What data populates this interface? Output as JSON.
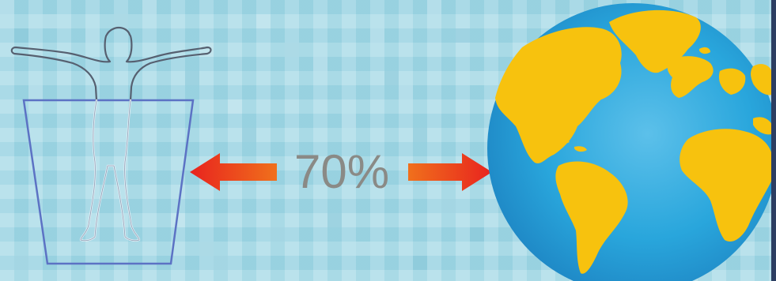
{
  "label": {
    "percent": "70%"
  },
  "colors": {
    "background": "#a9dbe8",
    "percent_text": "#8a8a86",
    "arrow_start": "#f0701c",
    "arrow_end": "#e8231e",
    "container_stroke": "#5c72c4",
    "body_outline": "#566070",
    "ocean": "#29a6dc",
    "land": "#f7c20e",
    "border": "#2c3e62"
  },
  "icons": {
    "human": "human-figure-icon",
    "container": "water-container-icon",
    "globe": "earth-globe-icon"
  }
}
